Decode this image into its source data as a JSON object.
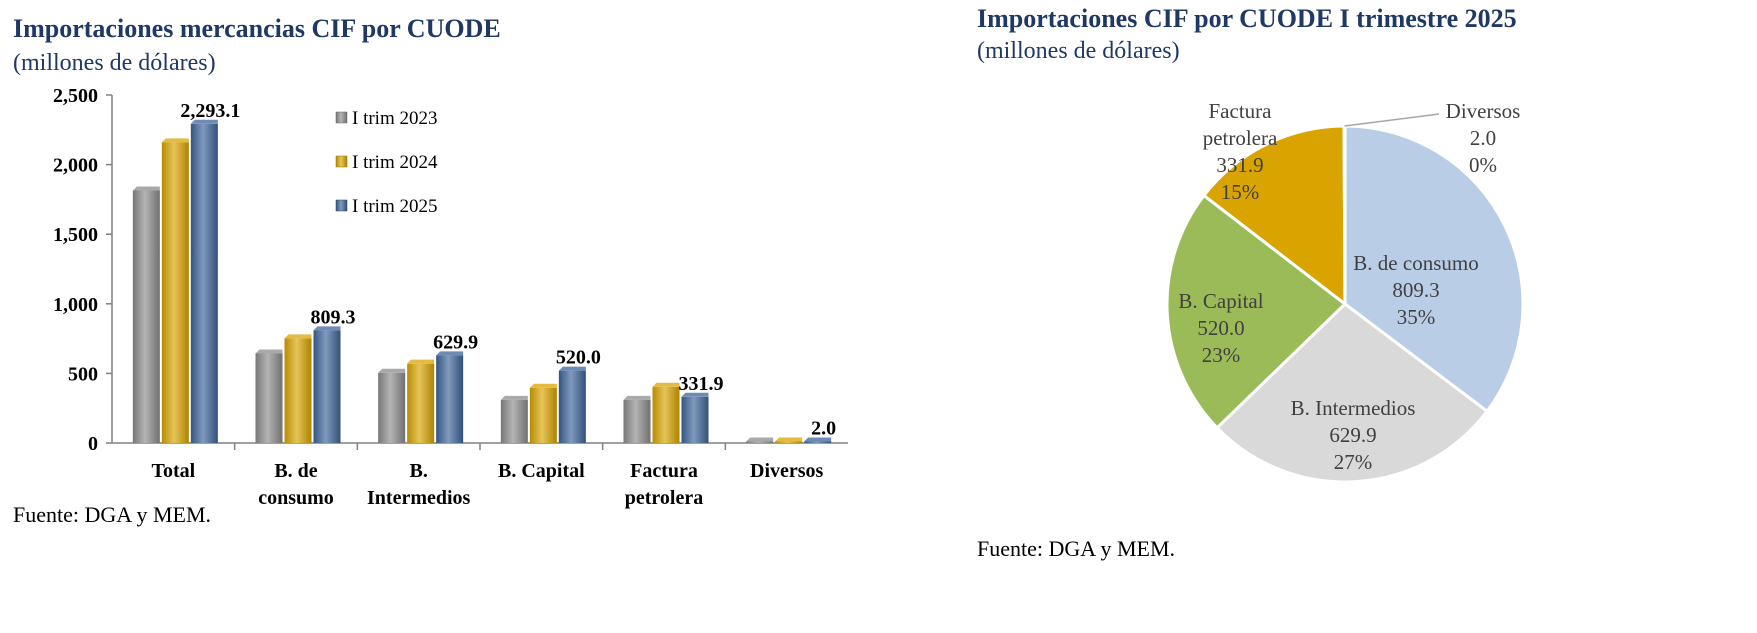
{
  "left_panel": {
    "title": "Importaciones mercancias CIF por CUODE",
    "subtitle": "(millones de dólares)",
    "source": "Fuente: DGA y MEM."
  },
  "right_panel": {
    "title": "Importaciones CIF por CUODE  I trimestre  2025",
    "subtitle": "(millones de dólares)",
    "source": "Fuente: DGA y MEM."
  },
  "chart_data": [
    {
      "type": "bar",
      "title": "Importaciones mercancias CIF por CUODE",
      "subtitle": "(millones de dólares)",
      "categories": [
        [
          "Total"
        ],
        [
          "B. de",
          "consumo"
        ],
        [
          "B.",
          "Intermedios"
        ],
        [
          "B. Capital"
        ],
        [
          "Factura",
          "petrolera"
        ],
        [
          "Diversos"
        ]
      ],
      "series": [
        {
          "name": "I trim 2023",
          "color": "#8c8c8c",
          "values": [
            1814,
            643,
            505,
            310,
            310,
            2
          ]
        },
        {
          "name": "I trim 2024",
          "color": "#d9a400",
          "values": [
            2160,
            752,
            570,
            397,
            404,
            2
          ]
        },
        {
          "name": "I trim 2025",
          "color": "#3d6499",
          "values": [
            2293.1,
            809.3,
            629.9,
            520.0,
            331.9,
            2.0
          ]
        }
      ],
      "data_labels": [
        "2,293.1",
        "809.3",
        "629.9",
        "520.0",
        "331.9",
        "2.0"
      ],
      "ylim": [
        0,
        2500
      ],
      "yticks": [
        0,
        500,
        1000,
        1500,
        2000,
        2500
      ],
      "ytick_labels": [
        "0",
        "500",
        "1,000",
        "1,500",
        "2,000",
        "2,500"
      ],
      "legend_position": "top-center",
      "grid": false
    },
    {
      "type": "pie",
      "title": "Importaciones CIF por CUODE  I trimestre  2025",
      "subtitle": "(millones de dólares)",
      "slices": [
        {
          "label": [
            "B. de consumo"
          ],
          "value": 809.3,
          "value_label": "809.3",
          "percent_label": "35%",
          "color": "#b9cde6"
        },
        {
          "label": [
            "B. Intermedios"
          ],
          "value": 629.9,
          "value_label": "629.9",
          "percent_label": "27%",
          "color": "#d9d9d9"
        },
        {
          "label": [
            "B. Capital"
          ],
          "value": 520.0,
          "value_label": "520.0",
          "percent_label": "23%",
          "color": "#9bbb59"
        },
        {
          "label": [
            "Factura",
            "petrolera"
          ],
          "value": 331.9,
          "value_label": "331.9",
          "percent_label": "15%",
          "color": "#d9a400"
        },
        {
          "label": [
            "Diversos"
          ],
          "value": 2.0,
          "value_label": "2.0",
          "percent_label": "0%",
          "color": "#4f81bd"
        }
      ]
    }
  ]
}
